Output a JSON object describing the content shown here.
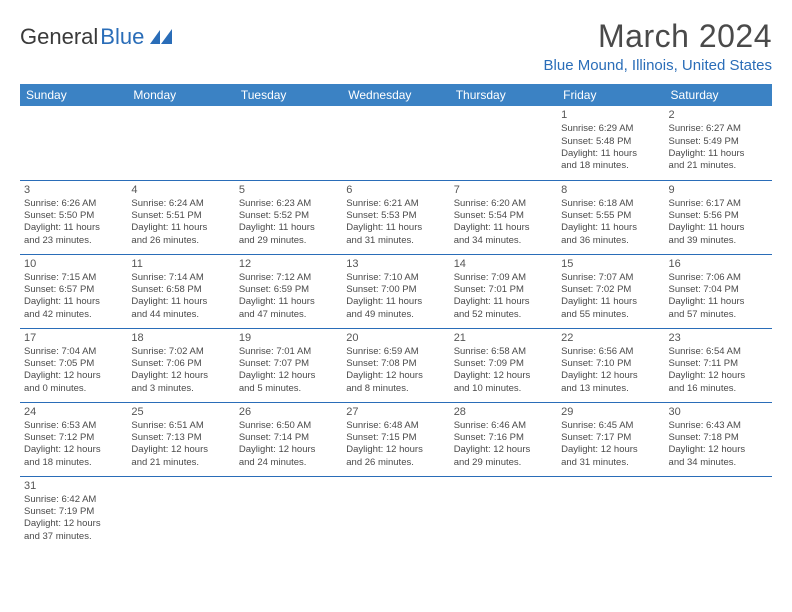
{
  "logo": {
    "part1": "General",
    "part2": "Blue"
  },
  "title": "March 2024",
  "location": "Blue Mound, Illinois, United States",
  "header_bg": "#3b82c4",
  "header_fg": "#ffffff",
  "accent": "#2a6db8",
  "text_color": "#4a4a4a",
  "background": "#ffffff",
  "day_headers": [
    "Sunday",
    "Monday",
    "Tuesday",
    "Wednesday",
    "Thursday",
    "Friday",
    "Saturday"
  ],
  "weeks": [
    [
      null,
      null,
      null,
      null,
      null,
      {
        "n": "1",
        "sr": "6:29 AM",
        "ss": "5:48 PM",
        "dl": "11 hours and 18 minutes."
      },
      {
        "n": "2",
        "sr": "6:27 AM",
        "ss": "5:49 PM",
        "dl": "11 hours and 21 minutes."
      }
    ],
    [
      {
        "n": "3",
        "sr": "6:26 AM",
        "ss": "5:50 PM",
        "dl": "11 hours and 23 minutes."
      },
      {
        "n": "4",
        "sr": "6:24 AM",
        "ss": "5:51 PM",
        "dl": "11 hours and 26 minutes."
      },
      {
        "n": "5",
        "sr": "6:23 AM",
        "ss": "5:52 PM",
        "dl": "11 hours and 29 minutes."
      },
      {
        "n": "6",
        "sr": "6:21 AM",
        "ss": "5:53 PM",
        "dl": "11 hours and 31 minutes."
      },
      {
        "n": "7",
        "sr": "6:20 AM",
        "ss": "5:54 PM",
        "dl": "11 hours and 34 minutes."
      },
      {
        "n": "8",
        "sr": "6:18 AM",
        "ss": "5:55 PM",
        "dl": "11 hours and 36 minutes."
      },
      {
        "n": "9",
        "sr": "6:17 AM",
        "ss": "5:56 PM",
        "dl": "11 hours and 39 minutes."
      }
    ],
    [
      {
        "n": "10",
        "sr": "7:15 AM",
        "ss": "6:57 PM",
        "dl": "11 hours and 42 minutes."
      },
      {
        "n": "11",
        "sr": "7:14 AM",
        "ss": "6:58 PM",
        "dl": "11 hours and 44 minutes."
      },
      {
        "n": "12",
        "sr": "7:12 AM",
        "ss": "6:59 PM",
        "dl": "11 hours and 47 minutes."
      },
      {
        "n": "13",
        "sr": "7:10 AM",
        "ss": "7:00 PM",
        "dl": "11 hours and 49 minutes."
      },
      {
        "n": "14",
        "sr": "7:09 AM",
        "ss": "7:01 PM",
        "dl": "11 hours and 52 minutes."
      },
      {
        "n": "15",
        "sr": "7:07 AM",
        "ss": "7:02 PM",
        "dl": "11 hours and 55 minutes."
      },
      {
        "n": "16",
        "sr": "7:06 AM",
        "ss": "7:04 PM",
        "dl": "11 hours and 57 minutes."
      }
    ],
    [
      {
        "n": "17",
        "sr": "7:04 AM",
        "ss": "7:05 PM",
        "dl": "12 hours and 0 minutes."
      },
      {
        "n": "18",
        "sr": "7:02 AM",
        "ss": "7:06 PM",
        "dl": "12 hours and 3 minutes."
      },
      {
        "n": "19",
        "sr": "7:01 AM",
        "ss": "7:07 PM",
        "dl": "12 hours and 5 minutes."
      },
      {
        "n": "20",
        "sr": "6:59 AM",
        "ss": "7:08 PM",
        "dl": "12 hours and 8 minutes."
      },
      {
        "n": "21",
        "sr": "6:58 AM",
        "ss": "7:09 PM",
        "dl": "12 hours and 10 minutes."
      },
      {
        "n": "22",
        "sr": "6:56 AM",
        "ss": "7:10 PM",
        "dl": "12 hours and 13 minutes."
      },
      {
        "n": "23",
        "sr": "6:54 AM",
        "ss": "7:11 PM",
        "dl": "12 hours and 16 minutes."
      }
    ],
    [
      {
        "n": "24",
        "sr": "6:53 AM",
        "ss": "7:12 PM",
        "dl": "12 hours and 18 minutes."
      },
      {
        "n": "25",
        "sr": "6:51 AM",
        "ss": "7:13 PM",
        "dl": "12 hours and 21 minutes."
      },
      {
        "n": "26",
        "sr": "6:50 AM",
        "ss": "7:14 PM",
        "dl": "12 hours and 24 minutes."
      },
      {
        "n": "27",
        "sr": "6:48 AM",
        "ss": "7:15 PM",
        "dl": "12 hours and 26 minutes."
      },
      {
        "n": "28",
        "sr": "6:46 AM",
        "ss": "7:16 PM",
        "dl": "12 hours and 29 minutes."
      },
      {
        "n": "29",
        "sr": "6:45 AM",
        "ss": "7:17 PM",
        "dl": "12 hours and 31 minutes."
      },
      {
        "n": "30",
        "sr": "6:43 AM",
        "ss": "7:18 PM",
        "dl": "12 hours and 34 minutes."
      }
    ],
    [
      {
        "n": "31",
        "sr": "6:42 AM",
        "ss": "7:19 PM",
        "dl": "12 hours and 37 minutes."
      },
      null,
      null,
      null,
      null,
      null,
      null
    ]
  ],
  "labels": {
    "sunrise": "Sunrise:",
    "sunset": "Sunset:",
    "daylight": "Daylight:"
  }
}
